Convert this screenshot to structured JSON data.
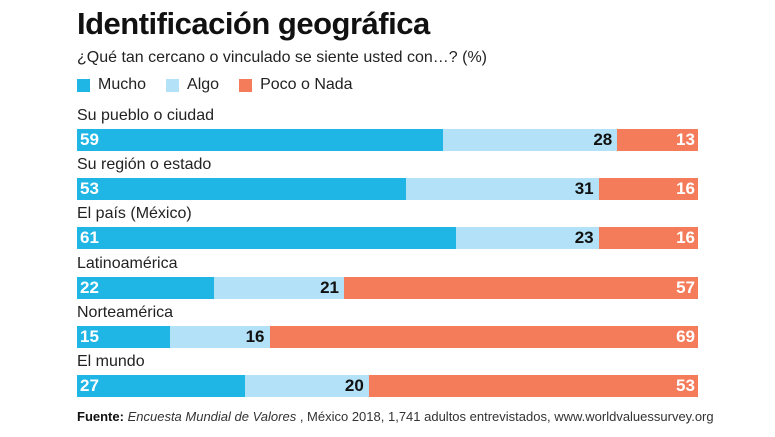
{
  "title": "Identificación geográfica",
  "subtitle": "¿Qué tan cercano o vinculado se siente usted con…? (%)",
  "legend_placement": "top-left",
  "colors": {
    "mucho": "#1fb6e6",
    "algo": "#b3e1f7",
    "poco": "#f47c5a"
  },
  "source": {
    "prefix": "Fuente:",
    "name": "Encuesta Mundial de Valores",
    "rest": " , México 2018, 1,741 adultos entrevistados, www.worldvaluessurvey.org"
  },
  "chart_data": {
    "type": "bar",
    "orientation": "horizontal",
    "stacked": true,
    "title": "Identificación geográfica",
    "subtitle": "¿Qué tan cercano o vinculado se siente usted con…? (%)",
    "categories": [
      "Su pueblo o ciudad",
      "Su región o estado",
      "El país (México)",
      "Latinoamérica",
      "Norteamérica",
      "El mundo"
    ],
    "series": [
      {
        "name": "Mucho",
        "key": "mucho",
        "values": [
          59,
          53,
          61,
          22,
          15,
          27
        ]
      },
      {
        "name": "Algo",
        "key": "algo",
        "values": [
          28,
          31,
          23,
          21,
          16,
          20
        ]
      },
      {
        "name": "Poco o Nada",
        "key": "poco",
        "values": [
          13,
          16,
          16,
          57,
          69,
          53
        ]
      }
    ],
    "xlim": [
      0,
      100
    ],
    "grid": false
  }
}
